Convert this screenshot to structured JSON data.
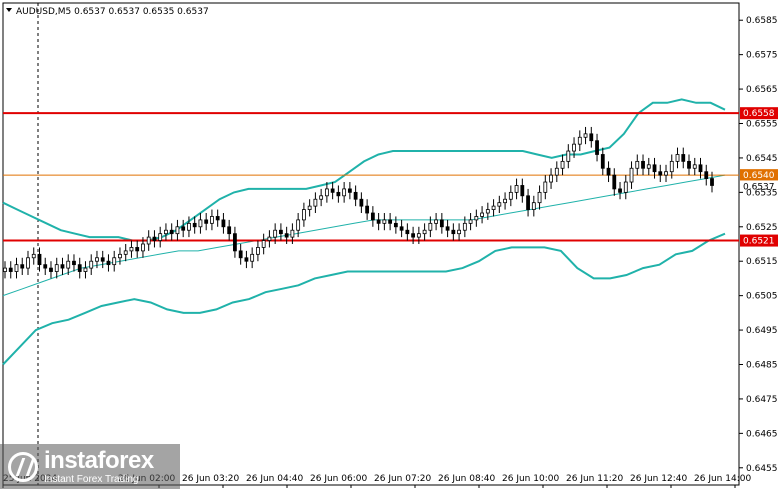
{
  "header": {
    "symbol_info": "AUDUSD,M5  0.6537 0.6537 0.6535 0.6537"
  },
  "logo": {
    "brand": "instaforex",
    "tagline": "Instant Forex Trading"
  },
  "colors": {
    "bull_candle": "#000000",
    "bear_candle": "#000000",
    "bands": "#20b2aa",
    "ma": "#20b2aa",
    "support_resistance": "#e00000",
    "current_level": "#e07000"
  },
  "chart_data": {
    "type": "candlestick",
    "symbol": "AUDUSD",
    "timeframe": "M5",
    "ohlc_latest": {
      "open": 0.6537,
      "high": 0.6537,
      "low": 0.6535,
      "close": 0.6537
    },
    "y_ticks": [
      "0.6585",
      "0.6575",
      "0.6565",
      "0.6555",
      "0.6545",
      "0.6535",
      "0.6525",
      "0.6515",
      "0.6505",
      "0.6495",
      "0.6485",
      "0.6475",
      "0.6465",
      "0.6455"
    ],
    "x_ticks": [
      "25 Jun 2024",
      "26 Jun 02:00",
      "26 Jun 03:20",
      "26 Jun 04:40",
      "26 Jun 06:00",
      "26 Jun 07:20",
      "26 Jun 08:40",
      "26 Jun 10:00",
      "26 Jun 11:20",
      "26 Jun 12:40",
      "26 Jun 14:00"
    ],
    "ylim": [
      0.645,
      0.659
    ],
    "horizontal_lines": [
      {
        "label": "0.6558",
        "value": 0.6558,
        "kind": "resistance"
      },
      {
        "label": "0.6540",
        "value": 0.654,
        "kind": "level"
      },
      {
        "label": "0.6537",
        "value": 0.6537,
        "kind": "current"
      },
      {
        "label": "0.6521",
        "value": 0.6521,
        "kind": "support"
      }
    ],
    "closes": [
      0.6513,
      0.6512,
      0.6514,
      0.6513,
      0.6516,
      0.6517,
      0.6514,
      0.6513,
      0.6512,
      0.6514,
      0.6513,
      0.6515,
      0.6514,
      0.6512,
      0.6513,
      0.6515,
      0.6516,
      0.6515,
      0.6514,
      0.6516,
      0.6517,
      0.6518,
      0.6519,
      0.6518,
      0.652,
      0.6522,
      0.6521,
      0.6523,
      0.6524,
      0.6523,
      0.6525,
      0.6524,
      0.6526,
      0.6525,
      0.6527,
      0.6526,
      0.6528,
      0.6527,
      0.6525,
      0.6523,
      0.6518,
      0.6516,
      0.6515,
      0.6517,
      0.6519,
      0.6521,
      0.6522,
      0.6524,
      0.6523,
      0.6522,
      0.6524,
      0.6527,
      0.653,
      0.6531,
      0.6533,
      0.6534,
      0.6536,
      0.6535,
      0.6534,
      0.6536,
      0.6535,
      0.6533,
      0.6531,
      0.6529,
      0.6527,
      0.6526,
      0.6527,
      0.6526,
      0.6525,
      0.6524,
      0.6523,
      0.6522,
      0.6523,
      0.6524,
      0.6526,
      0.6527,
      0.6525,
      0.6524,
      0.6523,
      0.6524,
      0.6526,
      0.6527,
      0.6528,
      0.6529,
      0.653,
      0.6531,
      0.6532,
      0.6533,
      0.6535,
      0.6537,
      0.6534,
      0.653,
      0.6532,
      0.6535,
      0.6538,
      0.654,
      0.6542,
      0.6544,
      0.6547,
      0.6549,
      0.6551,
      0.6552,
      0.655,
      0.6546,
      0.6542,
      0.654,
      0.6536,
      0.6535,
      0.6538,
      0.6542,
      0.6544,
      0.6542,
      0.6543,
      0.6541,
      0.654,
      0.6541,
      0.6544,
      0.6546,
      0.6544,
      0.6542,
      0.6543,
      0.6541,
      0.6539,
      0.6537
    ],
    "upper_band": [
      0.6532,
      0.653,
      0.6528,
      0.6526,
      0.6524,
      0.6523,
      0.6522,
      0.6522,
      0.6522,
      0.6521,
      0.6521,
      0.6522,
      0.6524,
      0.6527,
      0.653,
      0.6533,
      0.6535,
      0.6536,
      0.6536,
      0.6536,
      0.6536,
      0.6536,
      0.6537,
      0.6538,
      0.6541,
      0.6544,
      0.6546,
      0.6547,
      0.6547,
      0.6547,
      0.6547,
      0.6547,
      0.6547,
      0.6547,
      0.6547,
      0.6547,
      0.6547,
      0.6546,
      0.6545,
      0.6546,
      0.6546,
      0.6547,
      0.6548,
      0.6552,
      0.6558,
      0.6561,
      0.6561,
      0.6562,
      0.6561,
      0.6561,
      0.6559
    ],
    "lower_band": [
      0.6485,
      0.649,
      0.6495,
      0.6497,
      0.6498,
      0.65,
      0.6502,
      0.6503,
      0.6504,
      0.6503,
      0.6501,
      0.65,
      0.65,
      0.6501,
      0.6503,
      0.6504,
      0.6506,
      0.6507,
      0.6508,
      0.651,
      0.6511,
      0.6512,
      0.6512,
      0.6512,
      0.6512,
      0.6512,
      0.6512,
      0.6512,
      0.6513,
      0.6515,
      0.6518,
      0.6519,
      0.6519,
      0.6519,
      0.6518,
      0.6513,
      0.651,
      0.651,
      0.6511,
      0.6513,
      0.6514,
      0.6517,
      0.6518,
      0.6521,
      0.6523
    ],
    "ma_line": [
      0.6505,
      0.6507,
      0.6509,
      0.6511,
      0.6513,
      0.6514,
      0.6515,
      0.6516,
      0.6517,
      0.6518,
      0.6518,
      0.6519,
      0.652,
      0.6521,
      0.6522,
      0.6523,
      0.6524,
      0.6525,
      0.6526,
      0.6527,
      0.6527,
      0.6527,
      0.6527,
      0.6527,
      0.6527,
      0.6528,
      0.6529,
      0.653,
      0.6531,
      0.6532,
      0.6533,
      0.6534,
      0.6535,
      0.6536,
      0.6537,
      0.6538,
      0.6539,
      0.654
    ]
  }
}
